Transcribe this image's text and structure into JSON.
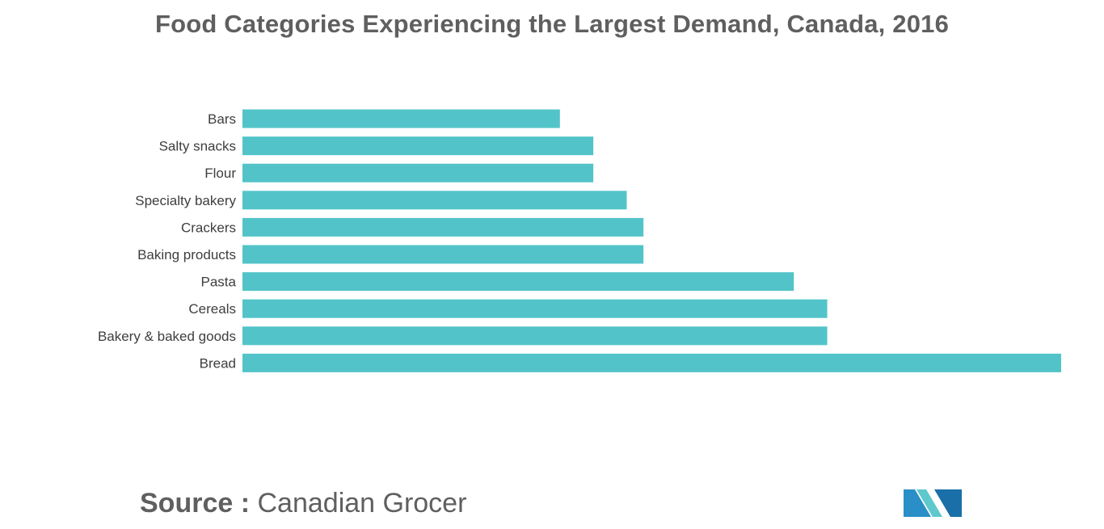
{
  "chart_data": {
    "type": "bar",
    "orientation": "horizontal",
    "title": "Food Categories Experiencing the Largest Demand, Canada, 2016",
    "categories": [
      "Bars",
      "Salty snacks",
      "Flour",
      "Specialty bakery",
      "Crackers",
      "Baking products",
      "Pasta",
      "Cereals",
      "Bakery & baked goods",
      "Bread"
    ],
    "values": [
      38,
      42,
      42,
      46,
      48,
      48,
      66,
      70,
      70,
      98
    ],
    "xlim": [
      0,
      98
    ],
    "axis_labels_shown": false,
    "grid": false,
    "bar_color": "#52c4c9"
  },
  "source": {
    "label": "Source :",
    "text": "Canadian Grocer"
  },
  "logo": {
    "icon": "mordor-intelligence-logo",
    "colors": [
      "#2a8fc7",
      "#5ec8cc",
      "#1a6fa8"
    ]
  }
}
